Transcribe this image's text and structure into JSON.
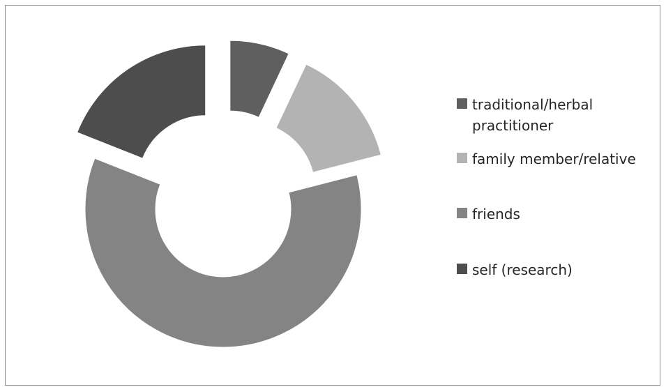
{
  "chart_data": {
    "type": "pie",
    "variant": "exploded-donut",
    "title": "",
    "slices": [
      {
        "label": "traditional/herbal practitioner",
        "value": 7,
        "color": "#5f5f5f"
      },
      {
        "label": "family member/relative",
        "value": 14,
        "color": "#b3b3b3"
      },
      {
        "label": "friends",
        "value": 60,
        "color": "#848484"
      },
      {
        "label": "self (research)",
        "value": 19,
        "color": "#4d4d4d"
      }
    ],
    "legend": {
      "position": "right"
    }
  }
}
